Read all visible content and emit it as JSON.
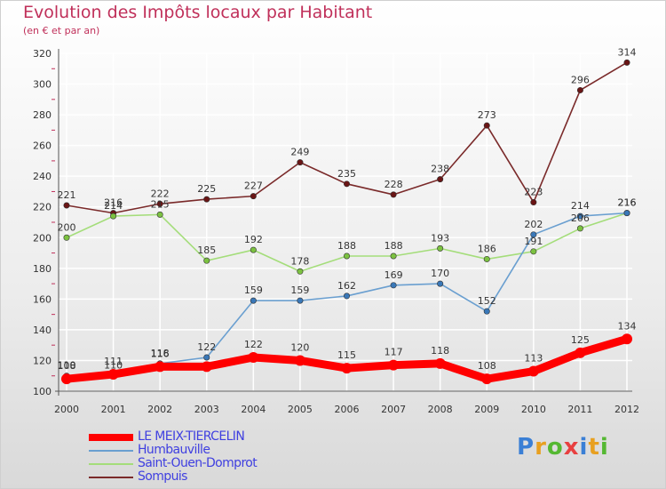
{
  "title": "Evolution des Impôts locaux par Habitant",
  "subtitle": "(en € et par an)",
  "logo": {
    "text": "Proxiti",
    "colors": [
      "#3a7fd5",
      "#e8a020",
      "#55b832",
      "#e84040"
    ]
  },
  "colors": {
    "title": "#c0305a",
    "axis_text": "#333333",
    "grid": "#ffffff",
    "legend_text": "#3f3fe0"
  },
  "chart_data": {
    "type": "line",
    "title": "Evolution des Impôts locaux par Habitant",
    "subtitle": "(en € et par an)",
    "xlabel": "",
    "ylabel": "",
    "x": [
      "2000",
      "2001",
      "2002",
      "2003",
      "2004",
      "2005",
      "2006",
      "2007",
      "2008",
      "2009",
      "2010",
      "2011",
      "2012"
    ],
    "ylim": [
      100,
      320
    ],
    "yticks": [
      100,
      120,
      140,
      160,
      180,
      200,
      220,
      240,
      260,
      280,
      300,
      320
    ],
    "grid": true,
    "legend_position": "bottom-left",
    "series": [
      {
        "name": "LE MEIX-TIERCELIN",
        "color": "#ff0000",
        "marker": "#ff0000",
        "emphasis": true,
        "values": [
          108,
          111,
          116,
          116,
          122,
          120,
          115,
          117,
          118,
          108,
          113,
          125,
          134
        ],
        "labels": [
          "108",
          "111",
          "116",
          "",
          "122",
          "120",
          "115",
          "117",
          "118",
          "108",
          "113",
          "125",
          "134"
        ]
      },
      {
        "name": "Humbauville",
        "color": "#6a9fd0",
        "marker": "#3a78b8",
        "emphasis": false,
        "values": [
          110,
          110,
          118,
          122,
          159,
          159,
          162,
          169,
          170,
          152,
          202,
          214,
          216
        ],
        "labels": [
          "110",
          "110",
          "118",
          "122",
          "159",
          "159",
          "162",
          "169",
          "170",
          "152",
          "202",
          "214",
          "216"
        ]
      },
      {
        "name": "Saint-Ouen-Domprot",
        "color": "#a4dd7a",
        "marker": "#7cc241",
        "emphasis": false,
        "values": [
          200,
          214,
          215,
          185,
          192,
          178,
          188,
          188,
          193,
          186,
          191,
          206,
          216
        ],
        "labels": [
          "200",
          "214",
          "215",
          "185",
          "192",
          "178",
          "188",
          "188",
          "193",
          "186",
          "191",
          "206",
          "216"
        ]
      },
      {
        "name": "Sompuis",
        "color": "#7a2a2a",
        "marker": "#6a1515",
        "emphasis": false,
        "values": [
          221,
          216,
          222,
          225,
          227,
          249,
          235,
          228,
          238,
          273,
          223,
          296,
          314
        ],
        "labels": [
          "221",
          "216",
          "222",
          "225",
          "227",
          "249",
          "235",
          "228",
          "238",
          "273",
          "223",
          "296",
          "314"
        ]
      }
    ]
  }
}
